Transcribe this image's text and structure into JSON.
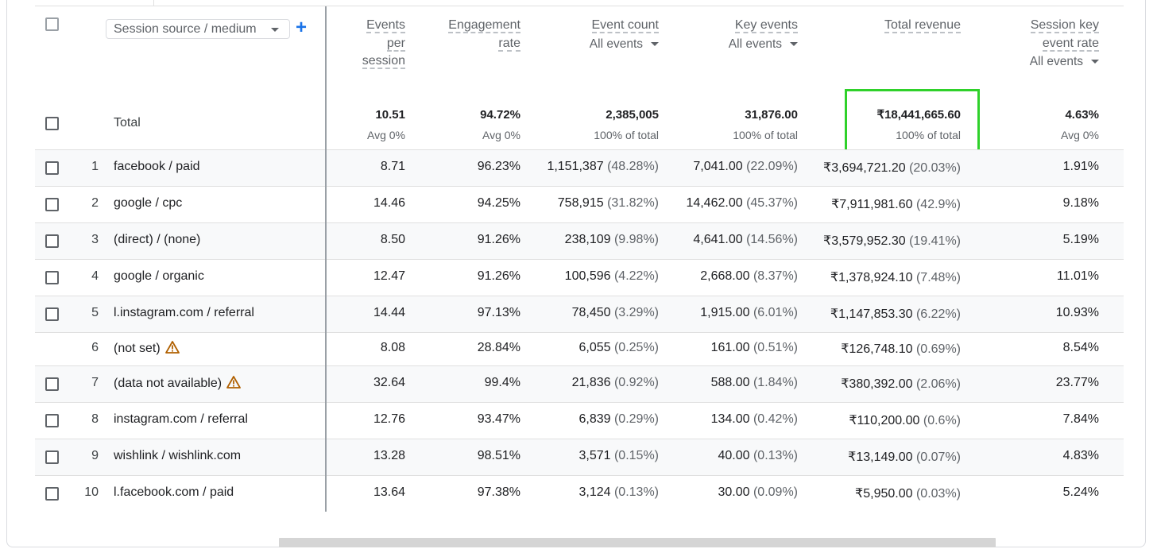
{
  "dimension": {
    "label": "Session source / medium"
  },
  "columns": [
    {
      "title": "Events per session",
      "lines": [
        "Events",
        "per",
        "session"
      ],
      "sub": ""
    },
    {
      "title": "Engagement rate",
      "lines": [
        "Engagement",
        "rate"
      ],
      "sub": ""
    },
    {
      "title": "Event count",
      "lines": [
        "Event count"
      ],
      "sub": "All events"
    },
    {
      "title": "Key events",
      "lines": [
        "Key events"
      ],
      "sub": "All events"
    },
    {
      "title": "Total revenue",
      "lines": [
        "Total revenue"
      ],
      "sub": ""
    },
    {
      "title": "Session key event rate",
      "lines": [
        "Session key",
        "event rate"
      ],
      "sub": "All events"
    }
  ],
  "totals": {
    "label": "Total",
    "values": [
      {
        "v": "10.51",
        "s": "Avg 0%"
      },
      {
        "v": "94.72%",
        "s": "Avg 0%"
      },
      {
        "v": "2,385,005",
        "s": "100% of total"
      },
      {
        "v": "31,876.00",
        "s": "100% of total"
      },
      {
        "v": "₹18,441,665.60",
        "s": "100% of total"
      },
      {
        "v": "4.63%",
        "s": "Avg 0%"
      }
    ]
  },
  "rows": [
    {
      "num": "1",
      "dim": "facebook / paid",
      "warning": false,
      "checkbox": true,
      "c": [
        "8.71",
        "96.23%",
        "1,151,387",
        "7,041.00",
        "₹3,694,721.20",
        "1.91%"
      ],
      "p": [
        "",
        "",
        "(48.28%)",
        "(22.09%)",
        "(20.03%)",
        ""
      ]
    },
    {
      "num": "2",
      "dim": "google / cpc",
      "warning": false,
      "checkbox": true,
      "c": [
        "14.46",
        "94.25%",
        "758,915",
        "14,462.00",
        "₹7,911,981.60",
        "9.18%"
      ],
      "p": [
        "",
        "",
        "(31.82%)",
        "(45.37%)",
        "(42.9%)",
        ""
      ]
    },
    {
      "num": "3",
      "dim": "(direct) / (none)",
      "warning": false,
      "checkbox": true,
      "c": [
        "8.50",
        "91.26%",
        "238,109",
        "4,641.00",
        "₹3,579,952.30",
        "5.19%"
      ],
      "p": [
        "",
        "",
        "(9.98%)",
        "(14.56%)",
        "(19.41%)",
        ""
      ]
    },
    {
      "num": "4",
      "dim": "google / organic",
      "warning": false,
      "checkbox": true,
      "c": [
        "12.47",
        "91.26%",
        "100,596",
        "2,668.00",
        "₹1,378,924.10",
        "11.01%"
      ],
      "p": [
        "",
        "",
        "(4.22%)",
        "(8.37%)",
        "(7.48%)",
        ""
      ]
    },
    {
      "num": "5",
      "dim": "l.instagram.com / referral",
      "warning": false,
      "checkbox": true,
      "c": [
        "14.44",
        "97.13%",
        "78,450",
        "1,915.00",
        "₹1,147,853.30",
        "10.93%"
      ],
      "p": [
        "",
        "",
        "(3.29%)",
        "(6.01%)",
        "(6.22%)",
        ""
      ]
    },
    {
      "num": "6",
      "dim": "(not set)",
      "warning": true,
      "checkbox": false,
      "c": [
        "8.08",
        "28.84%",
        "6,055",
        "161.00",
        "₹126,748.10",
        "8.54%"
      ],
      "p": [
        "",
        "",
        "(0.25%)",
        "(0.51%)",
        "(0.69%)",
        ""
      ]
    },
    {
      "num": "7",
      "dim": "(data not available)",
      "warning": true,
      "checkbox": true,
      "c": [
        "32.64",
        "99.4%",
        "21,836",
        "588.00",
        "₹380,392.00",
        "23.77%"
      ],
      "p": [
        "",
        "",
        "(0.92%)",
        "(1.84%)",
        "(2.06%)",
        ""
      ]
    },
    {
      "num": "8",
      "dim": "instagram.com / referral",
      "warning": false,
      "checkbox": true,
      "c": [
        "12.76",
        "93.47%",
        "6,839",
        "134.00",
        "₹110,200.00",
        "7.84%"
      ],
      "p": [
        "",
        "",
        "(0.29%)",
        "(0.42%)",
        "(0.6%)",
        ""
      ]
    },
    {
      "num": "9",
      "dim": "wishlink / wishlink.com",
      "warning": false,
      "checkbox": true,
      "c": [
        "13.28",
        "98.51%",
        "3,571",
        "40.00",
        "₹13,149.00",
        "4.83%"
      ],
      "p": [
        "",
        "",
        "(0.15%)",
        "(0.13%)",
        "(0.07%)",
        ""
      ]
    },
    {
      "num": "10",
      "dim": "l.facebook.com / paid",
      "warning": false,
      "checkbox": true,
      "c": [
        "13.64",
        "97.38%",
        "3,124",
        "30.00",
        "₹5,950.00",
        "5.24%"
      ],
      "p": [
        "",
        "",
        "(0.13%)",
        "(0.09%)",
        "(0.03%)",
        ""
      ]
    }
  ],
  "colors": {
    "highlight": "#2fd12a",
    "accent": "#1a73e8",
    "warning": "#b06000"
  },
  "icons": {
    "add": "plus-icon",
    "warning": "warning-icon",
    "dropdown": "caret-down-icon"
  }
}
